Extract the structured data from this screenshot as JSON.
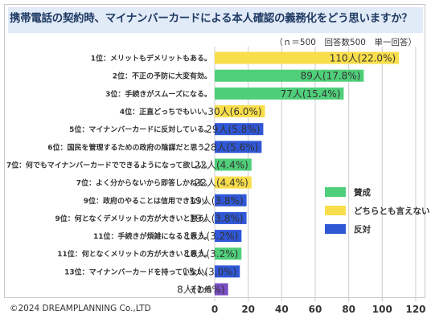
{
  "title": "携帯電話の契約時、マイナンバーカードによる本人確認の義務化をどう思いますか？",
  "note": "（ｎ＝500　回答数500　単一回答）",
  "copyright": "©2024 DREAMPLANNING Co.,LTD",
  "colors": {
    "賛成": "#4fcf7a",
    "どちらとも言えない": "#f9de4b",
    "反対": "#2f57d6",
    "その他": "#7a4fc4"
  },
  "chart_data": {
    "type": "bar",
    "orientation": "horizontal",
    "title": "携帯電話の契約時、マイナンバーカードによる本人確認の義務化をどう思いますか？",
    "xlim": [
      0,
      120
    ],
    "xticks": [
      0,
      20,
      40,
      60,
      80,
      100,
      120
    ],
    "grid": true,
    "legend_position": "right",
    "legend": [
      "賛成",
      "どちらとも言えない",
      "反対"
    ],
    "categories": [
      "1位：メリットもデメリットもある。",
      "2位：不正の予防に大変有効。",
      "3位：手続きがスムーズになる。",
      "4位：正直どっちでもいい。",
      "5位：マイナンバーカードに反対している。",
      "6位：国民を管理するための政府の陰謀だと思う。",
      "7位：何でもマイナンバーカードでできるようになって欲しい。",
      "7位：よく分からないから即答しかねる。",
      "9位：政府のやることは信用できない。",
      "9位：何となくデメリットの方が大きいと思う。",
      "11位：手続きが煩雑になると思う。",
      "11位：何となくメリットの方が大きいと思う。",
      "13位：マイナンバーカードを持っていない。",
      "その他"
    ],
    "values": [
      110,
      89,
      77,
      30,
      29,
      28,
      22,
      22,
      19,
      19,
      16,
      16,
      15,
      8
    ],
    "data_labels": [
      "110人(22.0%)",
      "89人(17.8%)",
      "77人(15.4%)",
      "30人(6.0%)",
      "29人(5.8%)",
      "28人(5.6%)",
      "22人(4.4%)",
      "22人(4.4%)",
      "19人(3.8%)",
      "19人(3.8%)",
      "16人(3.2%)",
      "16人(3.2%)",
      "15人(3.0%)",
      "8人(1.6%)"
    ],
    "groups": [
      "どちらとも言えない",
      "賛成",
      "賛成",
      "どちらとも言えない",
      "反対",
      "反対",
      "賛成",
      "どちらとも言えない",
      "反対",
      "反対",
      "反対",
      "賛成",
      "反対",
      "その他"
    ]
  }
}
